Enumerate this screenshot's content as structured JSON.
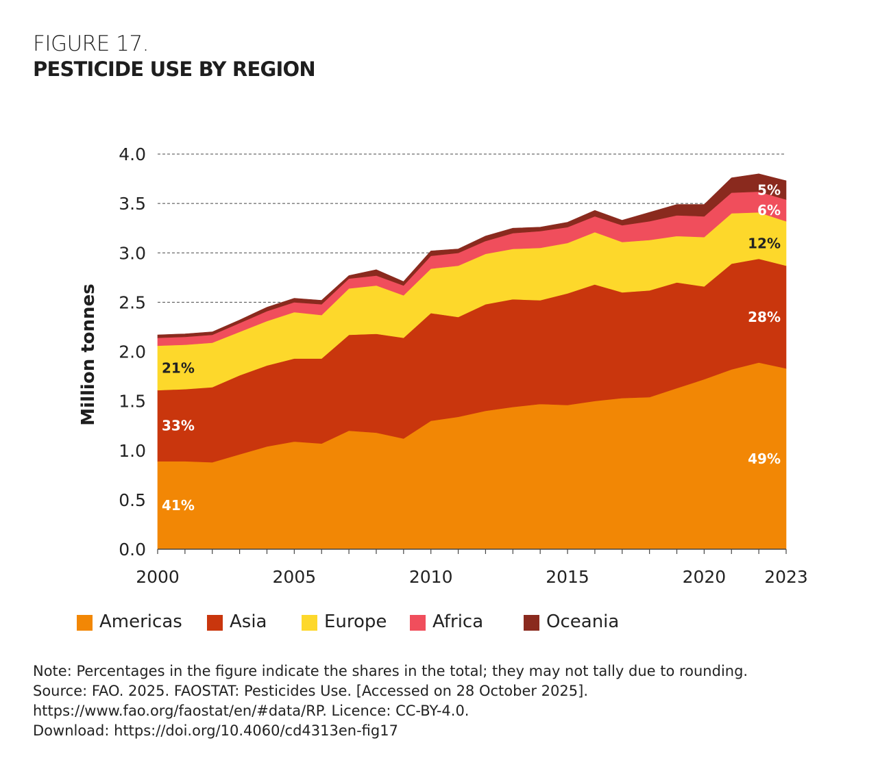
{
  "figure": {
    "label": "FIGURE 17.",
    "title": "PESTICIDE USE BY REGION"
  },
  "chart_data": {
    "type": "area",
    "stacked": true,
    "title": "PESTICIDE USE BY REGION",
    "xlabel": "",
    "ylabel": "Million tonnes",
    "xlim": [
      2000,
      2023
    ],
    "ylim": [
      0,
      4.0
    ],
    "x_ticks": [
      2000,
      2005,
      2010,
      2015,
      2020,
      2023
    ],
    "y_ticks": [
      "0.0",
      "0.5",
      "1.0",
      "1.5",
      "2.0",
      "2.5",
      "3.0",
      "3.5",
      "4.0"
    ],
    "grid": "horizontal dashed",
    "x": [
      2000,
      2001,
      2002,
      2003,
      2004,
      2005,
      2006,
      2007,
      2008,
      2009,
      2010,
      2011,
      2012,
      2013,
      2014,
      2015,
      2016,
      2017,
      2018,
      2019,
      2020,
      2021,
      2022,
      2023
    ],
    "series": [
      {
        "name": "Americas",
        "color": "#f28705",
        "values": [
          0.89,
          0.89,
          0.88,
          0.96,
          1.04,
          1.09,
          1.07,
          1.2,
          1.18,
          1.12,
          1.3,
          1.34,
          1.4,
          1.44,
          1.47,
          1.46,
          1.5,
          1.53,
          1.54,
          1.63,
          1.72,
          1.82,
          1.89,
          1.83
        ]
      },
      {
        "name": "Asia",
        "color": "#c9360d",
        "values": [
          0.72,
          0.73,
          0.76,
          0.8,
          0.82,
          0.84,
          0.86,
          0.97,
          1.0,
          1.02,
          1.09,
          1.01,
          1.08,
          1.09,
          1.05,
          1.13,
          1.18,
          1.07,
          1.08,
          1.07,
          0.94,
          1.07,
          1.05,
          1.04
        ]
      },
      {
        "name": "Europe",
        "color": "#fdd82b",
        "values": [
          0.45,
          0.45,
          0.45,
          0.44,
          0.45,
          0.47,
          0.44,
          0.47,
          0.49,
          0.43,
          0.45,
          0.52,
          0.51,
          0.51,
          0.53,
          0.51,
          0.53,
          0.51,
          0.51,
          0.47,
          0.5,
          0.51,
          0.47,
          0.45
        ]
      },
      {
        "name": "Africa",
        "color": "#f04e5c",
        "values": [
          0.08,
          0.08,
          0.08,
          0.09,
          0.1,
          0.1,
          0.11,
          0.1,
          0.1,
          0.1,
          0.13,
          0.13,
          0.13,
          0.16,
          0.17,
          0.16,
          0.16,
          0.17,
          0.19,
          0.21,
          0.21,
          0.21,
          0.21,
          0.22
        ]
      },
      {
        "name": "Oceania",
        "color": "#8a2a1e",
        "values": [
          0.03,
          0.03,
          0.03,
          0.03,
          0.04,
          0.04,
          0.04,
          0.03,
          0.06,
          0.04,
          0.05,
          0.04,
          0.05,
          0.05,
          0.04,
          0.05,
          0.06,
          0.05,
          0.09,
          0.11,
          0.12,
          0.15,
          0.18,
          0.19
        ]
      }
    ],
    "annotations": [
      {
        "text": "41%",
        "series": "Americas",
        "x": 2000,
        "align": "start",
        "color": "#ffffff"
      },
      {
        "text": "33%",
        "series": "Asia",
        "x": 2000,
        "align": "start",
        "color": "#ffffff"
      },
      {
        "text": "21%",
        "series": "Europe",
        "x": 2000,
        "align": "start",
        "color": "#222222"
      },
      {
        "text": "49%",
        "series": "Americas",
        "x": 2023,
        "align": "end",
        "color": "#ffffff"
      },
      {
        "text": "28%",
        "series": "Asia",
        "x": 2023,
        "align": "end",
        "color": "#ffffff"
      },
      {
        "text": "12%",
        "series": "Europe",
        "x": 2023,
        "align": "end",
        "color": "#222222"
      },
      {
        "text": "6%",
        "series": "Africa",
        "x": 2023,
        "align": "end",
        "color": "#ffffff"
      },
      {
        "text": "5%",
        "series": "Oceania",
        "x": 2023,
        "align": "end",
        "color": "#ffffff"
      }
    ],
    "legend": {
      "placement": "bottom"
    }
  },
  "legend": {
    "items": [
      {
        "label": "Americas",
        "color": "#f28705"
      },
      {
        "label": "Asia",
        "color": "#c9360d"
      },
      {
        "label": "Europe",
        "color": "#fdd82b"
      },
      {
        "label": "Africa",
        "color": "#f04e5c"
      },
      {
        "label": "Oceania",
        "color": "#8a2a1e"
      }
    ]
  },
  "notes": {
    "note": "Note: Percentages in the figure indicate the shares in the total; they may not tally due to rounding.",
    "source": "Source: FAO. 2025. FAOSTAT: Pesticides Use. [Accessed on 28 October 2025].",
    "url": "https://www.fao.org/faostat/en/#data/RP. Licence: CC-BY-4.0.",
    "download": "Download: https://doi.org/10.4060/cd4313en-fig17"
  }
}
